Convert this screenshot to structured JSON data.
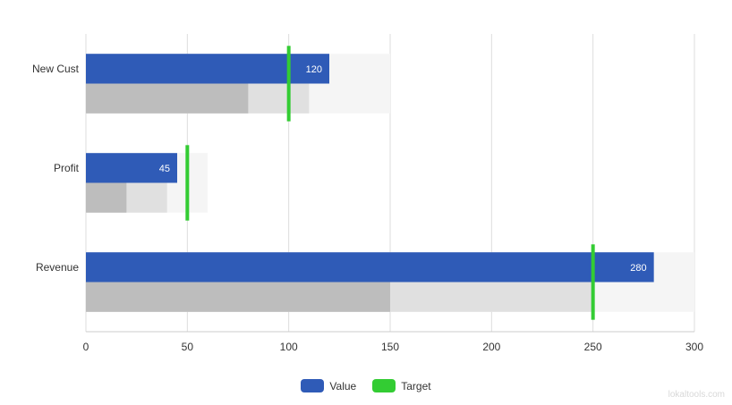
{
  "chart_data": {
    "type": "bar",
    "subtype": "bullet",
    "orientation": "horizontal",
    "categories": [
      "New Cust",
      "Profit",
      "Revenue"
    ],
    "series": [
      {
        "name": "Value",
        "values": [
          120,
          45,
          280
        ],
        "color": "#2f5bb7"
      },
      {
        "name": "Target",
        "values": [
          100,
          50,
          250
        ],
        "color": "#33cc33"
      }
    ],
    "ranges": [
      [
        80,
        110,
        150
      ],
      [
        20,
        40,
        60
      ],
      [
        150,
        250,
        300
      ]
    ],
    "range_colors": [
      "#bdbdbd",
      "#e0e0e0",
      "#f5f5f5"
    ],
    "xlim": [
      0,
      300
    ],
    "xticks": [
      0,
      50,
      100,
      150,
      200,
      250,
      300
    ],
    "grid": true,
    "legend": "bottom"
  },
  "legend": {
    "value_label": "Value",
    "target_label": "Target",
    "value_color": "#2f5bb7",
    "target_color": "#33cc33"
  },
  "watermark": "lokaltools.com"
}
